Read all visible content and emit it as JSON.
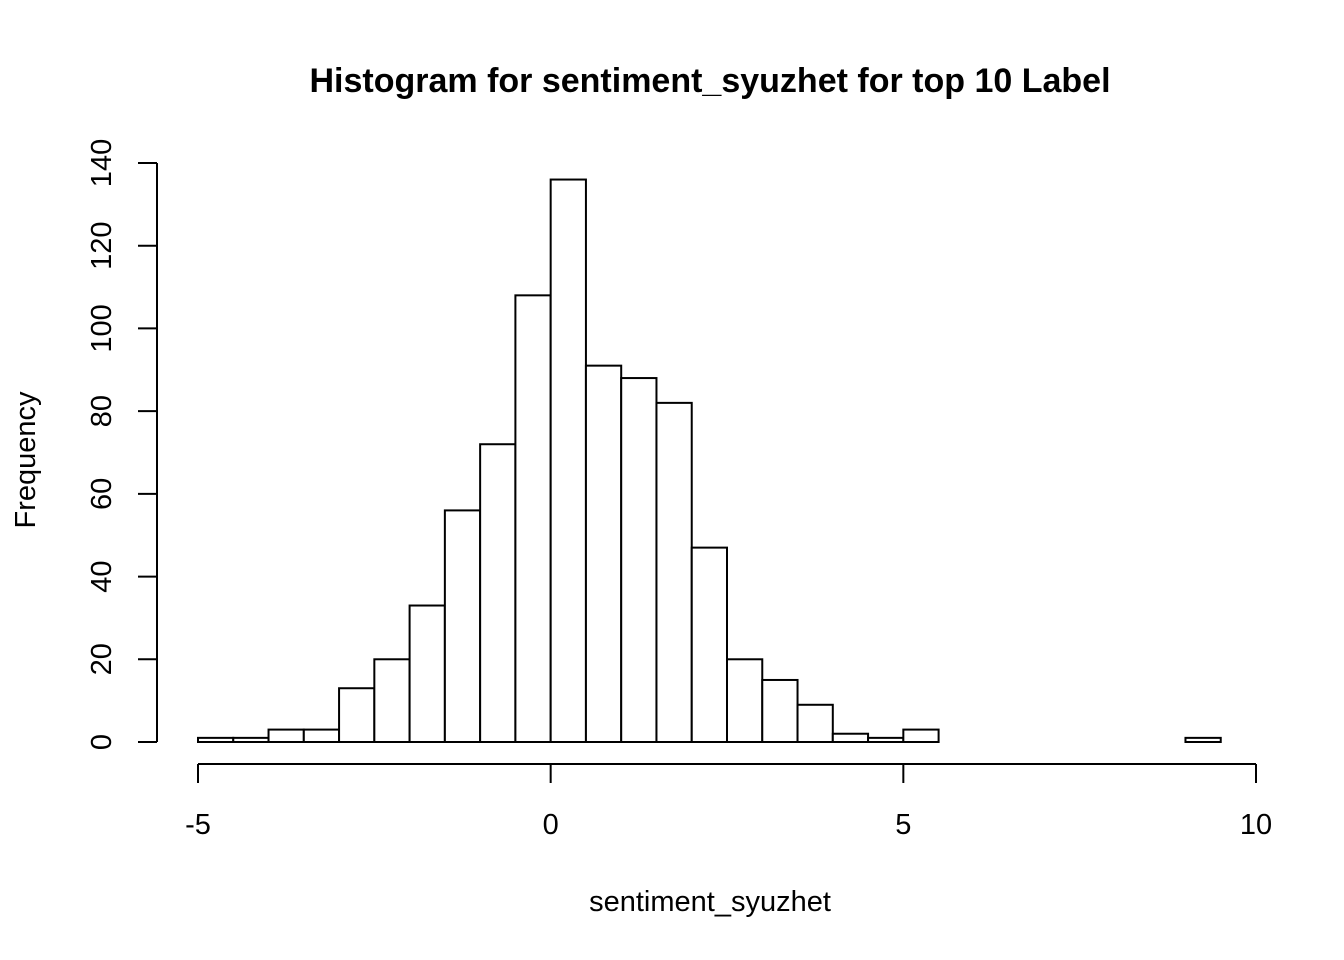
{
  "chart_data": {
    "type": "bar",
    "title": "Histogram for sentiment_syuzhet for top 10 Label",
    "xlabel": "sentiment_syuzhet",
    "ylabel": "Frequency",
    "xlim": [
      -5,
      10
    ],
    "ylim": [
      0,
      140
    ],
    "x_ticks": [
      -5,
      0,
      5,
      10
    ],
    "y_ticks": [
      0,
      20,
      40,
      60,
      80,
      100,
      120,
      140
    ],
    "bin_width": 0.5,
    "bins": [
      {
        "start": -5.0,
        "end": -4.5,
        "count": 1
      },
      {
        "start": -4.5,
        "end": -4.0,
        "count": 1
      },
      {
        "start": -4.0,
        "end": -3.5,
        "count": 3
      },
      {
        "start": -3.5,
        "end": -3.0,
        "count": 3
      },
      {
        "start": -3.0,
        "end": -2.5,
        "count": 13
      },
      {
        "start": -2.5,
        "end": -2.0,
        "count": 20
      },
      {
        "start": -2.0,
        "end": -1.5,
        "count": 33
      },
      {
        "start": -1.5,
        "end": -1.0,
        "count": 56
      },
      {
        "start": -1.0,
        "end": -0.5,
        "count": 72
      },
      {
        "start": -0.5,
        "end": 0.0,
        "count": 108
      },
      {
        "start": 0.0,
        "end": 0.5,
        "count": 136
      },
      {
        "start": 0.5,
        "end": 1.0,
        "count": 91
      },
      {
        "start": 1.0,
        "end": 1.5,
        "count": 88
      },
      {
        "start": 1.5,
        "end": 2.0,
        "count": 82
      },
      {
        "start": 2.0,
        "end": 2.5,
        "count": 47
      },
      {
        "start": 2.5,
        "end": 3.0,
        "count": 20
      },
      {
        "start": 3.0,
        "end": 3.5,
        "count": 15
      },
      {
        "start": 3.5,
        "end": 4.0,
        "count": 9
      },
      {
        "start": 4.0,
        "end": 4.5,
        "count": 2
      },
      {
        "start": 4.5,
        "end": 5.0,
        "count": 1
      },
      {
        "start": 5.0,
        "end": 5.5,
        "count": 3
      },
      {
        "start": 5.5,
        "end": 6.0,
        "count": 0
      },
      {
        "start": 6.0,
        "end": 6.5,
        "count": 0
      },
      {
        "start": 6.5,
        "end": 7.0,
        "count": 0
      },
      {
        "start": 7.0,
        "end": 7.5,
        "count": 0
      },
      {
        "start": 7.5,
        "end": 8.0,
        "count": 0
      },
      {
        "start": 8.0,
        "end": 8.5,
        "count": 0
      },
      {
        "start": 8.5,
        "end": 9.0,
        "count": 0
      },
      {
        "start": 9.0,
        "end": 9.5,
        "count": 1
      }
    ],
    "grid": false,
    "bar_fill": "#ffffff",
    "bar_stroke": "#000000"
  }
}
